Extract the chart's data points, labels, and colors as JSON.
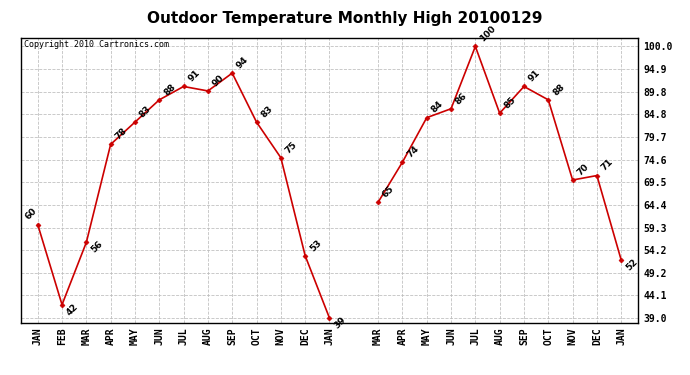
{
  "title": "Outdoor Temperature Monthly High 20100129",
  "copyright_text": "Copyright 2010 Cartronics.com",
  "months_year1": [
    "JAN",
    "FEB",
    "MAR",
    "APR",
    "MAY",
    "JUN",
    "JUL",
    "AUG",
    "SEP",
    "OCT",
    "NOV",
    "DEC",
    "JAN"
  ],
  "values_year1": [
    60,
    42,
    56,
    78,
    83,
    88,
    91,
    90,
    94,
    83,
    75,
    53,
    39
  ],
  "months_year2": [
    "MAR",
    "APR",
    "MAY",
    "JUN",
    "JUL",
    "AUG",
    "SEP",
    "OCT",
    "NOV",
    "DEC",
    "JAN"
  ],
  "values_year2": [
    65,
    74,
    84,
    86,
    100,
    85,
    91,
    88,
    70,
    71,
    52
  ],
  "ylim_min": 39.0,
  "ylim_max": 100.0,
  "line_color": "#cc0000",
  "marker_color": "#cc0000",
  "bg_color": "#ffffff",
  "grid_color": "#bbbbbb",
  "title_fontsize": 11,
  "label_fontsize": 6.5,
  "tick_fontsize": 7,
  "ytick_vals": [
    39.0,
    44.1,
    49.2,
    54.2,
    59.3,
    64.4,
    69.5,
    74.6,
    79.7,
    84.8,
    89.8,
    94.9,
    100.0
  ]
}
